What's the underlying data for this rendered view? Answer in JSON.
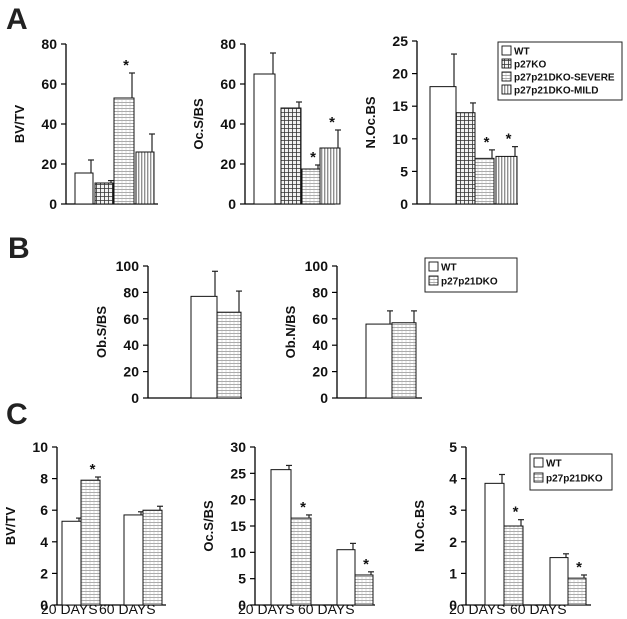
{
  "colors": {
    "WT": "#ffffff",
    "p27KO": "url(#pat-grid)",
    "p27p21DKO-SEVERE": "url(#pat-hlines)",
    "p27p21DKO-MILD": "url(#pat-vlines)",
    "p27p21DKO": "url(#pat-hlines)"
  },
  "panels": [
    {
      "letter": "A"
    },
    {
      "letter": "B"
    },
    {
      "letter": "C"
    }
  ],
  "legends": [
    {
      "id": "A",
      "entries": [
        "WT",
        "p27KO",
        "p27p21DKO-SEVERE",
        "p27p21DKO-MILD"
      ]
    },
    {
      "id": "B",
      "entries": [
        "WT",
        "p27p21DKO"
      ]
    },
    {
      "id": "C",
      "entries": [
        "WT",
        "p27p21DKO"
      ]
    }
  ],
  "chart_data": [
    {
      "id": "A1",
      "type": "bar",
      "ylabel": "BV/TV",
      "ylim": [
        0,
        80
      ],
      "yticks": [
        0,
        20,
        40,
        60,
        80
      ],
      "categories": [
        ""
      ],
      "series": [
        {
          "name": "WT",
          "values": [
            15.5
          ],
          "errors": [
            6.5
          ],
          "sig": [
            false
          ]
        },
        {
          "name": "p27KO",
          "values": [
            10.5
          ],
          "errors": [
            1.2
          ],
          "sig": [
            false
          ]
        },
        {
          "name": "p27p21DKO-SEVERE",
          "values": [
            53
          ],
          "errors": [
            12.5
          ],
          "sig": [
            true
          ]
        },
        {
          "name": "p27p21DKO-MILD",
          "values": [
            26
          ],
          "errors": [
            9
          ],
          "sig": [
            false
          ]
        }
      ]
    },
    {
      "id": "A2",
      "type": "bar",
      "ylabel": "Oc.S/BS",
      "ylim": [
        0,
        80
      ],
      "yticks": [
        0,
        20,
        40,
        60,
        80
      ],
      "categories": [
        ""
      ],
      "series": [
        {
          "name": "WT",
          "values": [
            65
          ],
          "errors": [
            10.5
          ],
          "sig": [
            false
          ]
        },
        {
          "name": "p27KO",
          "values": [
            48
          ],
          "errors": [
            3
          ],
          "sig": [
            false
          ]
        },
        {
          "name": "p27p21DKO-SEVERE",
          "values": [
            17.5
          ],
          "errors": [
            2
          ],
          "sig": [
            true
          ]
        },
        {
          "name": "p27p21DKO-MILD",
          "values": [
            28
          ],
          "errors": [
            9
          ],
          "sig": [
            true
          ]
        }
      ]
    },
    {
      "id": "A3",
      "type": "bar",
      "ylabel": "N.Oc.BS",
      "ylim": [
        0,
        25
      ],
      "yticks": [
        0,
        5,
        10,
        15,
        20,
        25
      ],
      "categories": [
        ""
      ],
      "series": [
        {
          "name": "WT",
          "values": [
            18
          ],
          "errors": [
            5
          ],
          "sig": [
            false
          ]
        },
        {
          "name": "p27KO",
          "values": [
            14
          ],
          "errors": [
            1.5
          ],
          "sig": [
            false
          ]
        },
        {
          "name": "p27p21DKO-SEVERE",
          "values": [
            7
          ],
          "errors": [
            1.3
          ],
          "sig": [
            true
          ]
        },
        {
          "name": "p27p21DKO-MILD",
          "values": [
            7.3
          ],
          "errors": [
            1.5
          ],
          "sig": [
            true
          ]
        }
      ]
    },
    {
      "id": "B1",
      "type": "bar",
      "ylabel": "Ob.S/BS",
      "ylim": [
        0,
        100
      ],
      "yticks": [
        0,
        20,
        40,
        60,
        80,
        100
      ],
      "categories": [
        ""
      ],
      "series": [
        {
          "name": "WT",
          "values": [
            77
          ],
          "errors": [
            19
          ],
          "sig": [
            false
          ]
        },
        {
          "name": "p27p21DKO",
          "values": [
            65
          ],
          "errors": [
            16
          ],
          "sig": [
            false
          ]
        }
      ]
    },
    {
      "id": "B2",
      "type": "bar",
      "ylabel": "Ob.N/BS",
      "ylim": [
        0,
        100
      ],
      "yticks": [
        0,
        20,
        40,
        60,
        80,
        100
      ],
      "categories": [
        ""
      ],
      "series": [
        {
          "name": "WT",
          "values": [
            56
          ],
          "errors": [
            10
          ],
          "sig": [
            false
          ]
        },
        {
          "name": "p27p21DKO",
          "values": [
            57
          ],
          "errors": [
            9
          ],
          "sig": [
            false
          ]
        }
      ]
    },
    {
      "id": "C1",
      "type": "bar",
      "ylabel": "BV/TV",
      "ylim": [
        0,
        10
      ],
      "yticks": [
        0,
        2,
        4,
        6,
        8,
        10
      ],
      "categories": [
        "20 DAYS",
        "60 DAYS"
      ],
      "series": [
        {
          "name": "WT",
          "values": [
            5.3,
            5.7
          ],
          "errors": [
            0.2,
            0.2
          ],
          "sig": [
            false,
            false
          ]
        },
        {
          "name": "p27p21DKO",
          "values": [
            7.9,
            6.0
          ],
          "errors": [
            0.2,
            0.25
          ],
          "sig": [
            true,
            false
          ]
        }
      ]
    },
    {
      "id": "C2",
      "type": "bar",
      "ylabel": "Oc.S/BS",
      "ylim": [
        0,
        30
      ],
      "yticks": [
        0,
        5,
        10,
        15,
        20,
        25,
        30
      ],
      "categories": [
        "20 DAYS",
        "60 DAYS"
      ],
      "series": [
        {
          "name": "WT",
          "values": [
            25.7,
            10.5
          ],
          "errors": [
            0.8,
            1.2
          ],
          "sig": [
            false,
            false
          ]
        },
        {
          "name": "p27p21DKO",
          "values": [
            16.5,
            5.7
          ],
          "errors": [
            0.6,
            0.6
          ],
          "sig": [
            true,
            true
          ]
        }
      ]
    },
    {
      "id": "C3",
      "type": "bar",
      "ylabel": "N.Oc.BS",
      "ylim": [
        0,
        5
      ],
      "yticks": [
        0,
        1,
        2,
        3,
        4,
        5
      ],
      "categories": [
        "20 DAYS",
        "60 DAYS"
      ],
      "series": [
        {
          "name": "WT",
          "values": [
            3.85,
            1.5
          ],
          "errors": [
            0.28,
            0.12
          ],
          "sig": [
            false,
            false
          ]
        },
        {
          "name": "p27p21DKO",
          "values": [
            2.5,
            0.85
          ],
          "errors": [
            0.2,
            0.1
          ],
          "sig": [
            true,
            true
          ]
        }
      ]
    }
  ]
}
